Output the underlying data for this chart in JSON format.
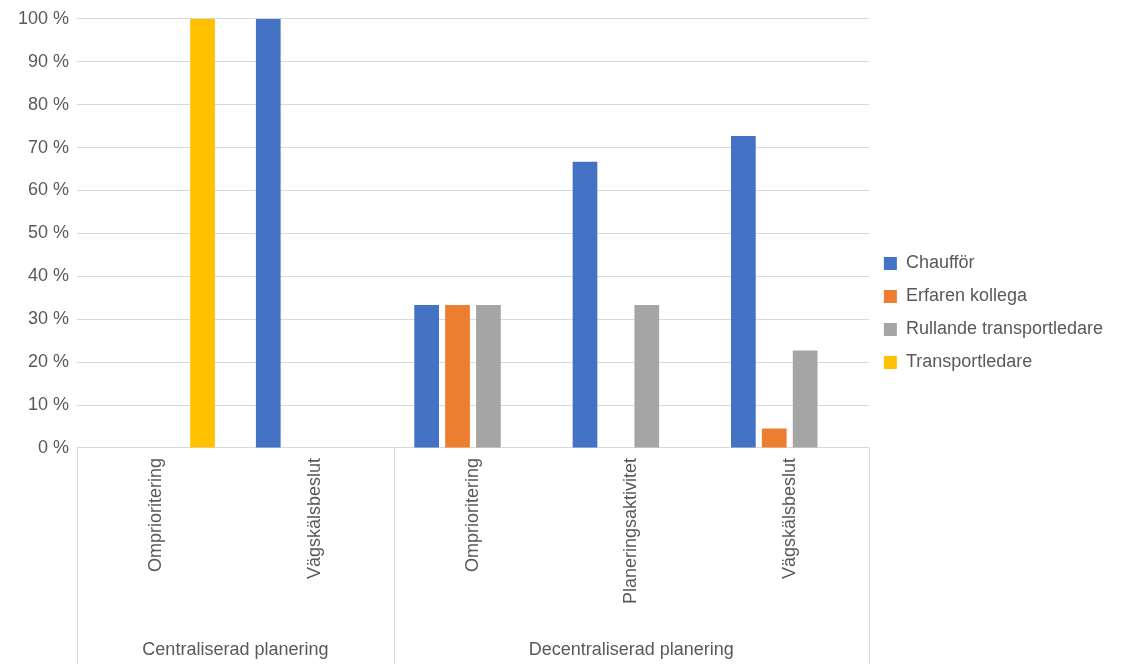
{
  "chart_data": {
    "type": "bar",
    "categories": [
      "Omprioritering",
      "Vägskälsbeslut",
      "Omprioritering",
      "Planeringsaktivitet",
      "Vägskälsbeslut"
    ],
    "series": [
      {
        "name": "Chaufför",
        "color": "#4472c4",
        "values": [
          null,
          100,
          33.3,
          66.7,
          72.7
        ]
      },
      {
        "name": "Erfaren kollega",
        "color": "#ed7d31",
        "values": [
          null,
          null,
          33.3,
          null,
          4.5
        ]
      },
      {
        "name": "Rullande transportledare",
        "color": "#a5a5a5",
        "values": [
          null,
          null,
          33.3,
          33.3,
          22.7
        ]
      },
      {
        "name": "Transportledare",
        "color": "#ffc000",
        "values": [
          100,
          null,
          null,
          null,
          null
        ]
      }
    ],
    "ylim": [
      0,
      100
    ],
    "yticks": [
      {
        "value": 0,
        "label": "0 %"
      },
      {
        "value": 10,
        "label": "10 %"
      },
      {
        "value": 20,
        "label": "20 %"
      },
      {
        "value": 30,
        "label": "30 %"
      },
      {
        "value": 40,
        "label": "40 %"
      },
      {
        "value": 50,
        "label": "50 %"
      },
      {
        "value": 60,
        "label": "60 %"
      },
      {
        "value": 70,
        "label": "70 %"
      },
      {
        "value": 80,
        "label": "80 %"
      },
      {
        "value": 90,
        "label": "90 %"
      },
      {
        "value": 100,
        "label": "100 %"
      }
    ],
    "annotations": [
      "Centraliserad planering",
      "Decentraliserad planering"
    ],
    "grid": "y",
    "legend": "right"
  }
}
